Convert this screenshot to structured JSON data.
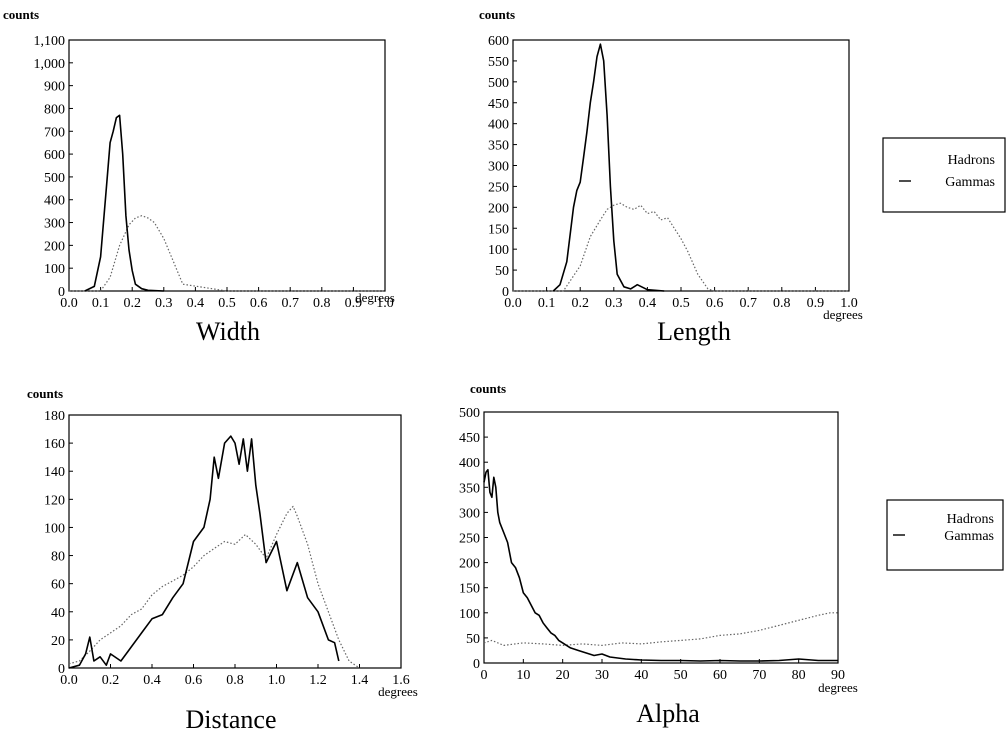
{
  "legend_labels": {
    "hadrons": "Hadrons",
    "gammas": "Gammas"
  },
  "chart_data": [
    {
      "type": "line",
      "title": "Width",
      "ylabel": "counts",
      "xlabel": "degrees",
      "xlim": [
        0,
        1.0
      ],
      "ylim": [
        0,
        1100
      ],
      "xticks": [
        0.0,
        0.1,
        0.2,
        0.3,
        0.4,
        0.5,
        0.6,
        0.7,
        0.8,
        0.9,
        1.0
      ],
      "xtick_labels": [
        "0.0",
        "0.1",
        "0.2",
        "0.3",
        "0.4",
        "0.5",
        "0.6",
        "0.7",
        "0.8",
        "0.9",
        "1.0"
      ],
      "yticks": [
        0,
        100,
        200,
        300,
        400,
        500,
        600,
        700,
        800,
        900,
        1000,
        1100
      ],
      "ytick_labels": [
        "0",
        "100",
        "200",
        "300",
        "400",
        "500",
        "600",
        "700",
        "800",
        "900",
        "1,000",
        "1,100"
      ],
      "series": [
        {
          "name": "Hadrons",
          "style": "dotted",
          "x": [
            0.0,
            0.1,
            0.13,
            0.16,
            0.19,
            0.21,
            0.23,
            0.25,
            0.27,
            0.3,
            0.33,
            0.36,
            0.5,
            0.7,
            0.9,
            1.0
          ],
          "y": [
            0,
            0,
            60,
            200,
            290,
            320,
            330,
            320,
            300,
            230,
            130,
            30,
            0,
            0,
            0,
            0
          ]
        },
        {
          "name": "Gammas",
          "style": "solid",
          "x": [
            0.05,
            0.08,
            0.1,
            0.12,
            0.13,
            0.14,
            0.15,
            0.16,
            0.17,
            0.18,
            0.19,
            0.2,
            0.21,
            0.23,
            0.25,
            0.3
          ],
          "y": [
            0,
            20,
            150,
            480,
            650,
            700,
            760,
            770,
            600,
            330,
            180,
            90,
            30,
            10,
            3,
            0
          ]
        }
      ]
    },
    {
      "type": "line",
      "title": "Length",
      "ylabel": "counts",
      "xlabel": "degrees",
      "xlim": [
        0,
        1.0
      ],
      "ylim": [
        0,
        600
      ],
      "xticks": [
        0.0,
        0.1,
        0.2,
        0.3,
        0.4,
        0.5,
        0.6,
        0.7,
        0.8,
        0.9,
        1.0
      ],
      "xtick_labels": [
        "0.0",
        "0.1",
        "0.2",
        "0.3",
        "0.4",
        "0.5",
        "0.6",
        "0.7",
        "0.8",
        "0.9",
        "1.0"
      ],
      "yticks": [
        0,
        50,
        100,
        150,
        200,
        250,
        300,
        350,
        400,
        450,
        500,
        550,
        600
      ],
      "ytick_labels": [
        "0",
        "50",
        "100",
        "150",
        "200",
        "250",
        "300",
        "350",
        "400",
        "450",
        "500",
        "550",
        "600"
      ],
      "series": [
        {
          "name": "Hadrons",
          "style": "dotted",
          "x": [
            0.0,
            0.15,
            0.2,
            0.23,
            0.26,
            0.28,
            0.3,
            0.32,
            0.34,
            0.36,
            0.38,
            0.4,
            0.42,
            0.44,
            0.46,
            0.48,
            0.5,
            0.52,
            0.55,
            0.58,
            0.6,
            0.7,
            0.8,
            0.9,
            1.0
          ],
          "y": [
            0,
            0,
            60,
            130,
            170,
            195,
            205,
            210,
            200,
            195,
            205,
            185,
            190,
            170,
            175,
            150,
            125,
            95,
            40,
            5,
            0,
            0,
            0,
            0,
            0
          ]
        },
        {
          "name": "Gammas",
          "style": "solid",
          "x": [
            0.12,
            0.14,
            0.16,
            0.18,
            0.19,
            0.2,
            0.21,
            0.22,
            0.23,
            0.24,
            0.25,
            0.26,
            0.27,
            0.28,
            0.29,
            0.3,
            0.31,
            0.33,
            0.35,
            0.37,
            0.4,
            0.45
          ],
          "y": [
            0,
            15,
            70,
            200,
            240,
            260,
            320,
            380,
            450,
            500,
            560,
            590,
            550,
            420,
            250,
            120,
            40,
            10,
            5,
            15,
            3,
            0
          ]
        }
      ]
    },
    {
      "type": "line",
      "title": "Distance",
      "ylabel": "counts",
      "xlabel": "degrees",
      "xlim": [
        0,
        1.6
      ],
      "ylim": [
        0,
        180
      ],
      "xticks": [
        0.0,
        0.2,
        0.4,
        0.6,
        0.8,
        1.0,
        1.2,
        1.4,
        1.6
      ],
      "xtick_labels": [
        "0.0",
        "0.2",
        "0.4",
        "0.6",
        "0.8",
        "1.0",
        "1.2",
        "1.4",
        "1.6"
      ],
      "yticks": [
        0,
        20,
        40,
        60,
        80,
        100,
        120,
        140,
        160,
        180
      ],
      "ytick_labels": [
        "0",
        "20",
        "40",
        "60",
        "80",
        "100",
        "120",
        "140",
        "160",
        "180"
      ],
      "series": [
        {
          "name": "Hadrons",
          "style": "dotted",
          "x": [
            0.0,
            0.05,
            0.1,
            0.15,
            0.2,
            0.25,
            0.3,
            0.35,
            0.4,
            0.45,
            0.5,
            0.55,
            0.6,
            0.65,
            0.7,
            0.75,
            0.8,
            0.85,
            0.9,
            0.95,
            1.0,
            1.05,
            1.08,
            1.1,
            1.15,
            1.2,
            1.25,
            1.3,
            1.35,
            1.4
          ],
          "y": [
            3,
            5,
            12,
            20,
            25,
            30,
            38,
            42,
            52,
            58,
            62,
            66,
            72,
            80,
            85,
            90,
            88,
            95,
            88,
            78,
            95,
            110,
            115,
            108,
            88,
            60,
            40,
            20,
            5,
            0
          ]
        },
        {
          "name": "Gammas",
          "style": "solid",
          "x": [
            0.0,
            0.05,
            0.08,
            0.1,
            0.12,
            0.15,
            0.18,
            0.2,
            0.25,
            0.3,
            0.35,
            0.4,
            0.45,
            0.5,
            0.55,
            0.6,
            0.65,
            0.68,
            0.7,
            0.72,
            0.75,
            0.78,
            0.8,
            0.82,
            0.84,
            0.86,
            0.88,
            0.9,
            0.92,
            0.95,
            1.0,
            1.05,
            1.1,
            1.15,
            1.2,
            1.25,
            1.28,
            1.3
          ],
          "y": [
            0,
            2,
            10,
            22,
            5,
            8,
            2,
            10,
            5,
            15,
            25,
            35,
            38,
            50,
            60,
            90,
            100,
            120,
            150,
            135,
            160,
            165,
            160,
            145,
            163,
            140,
            163,
            130,
            110,
            75,
            90,
            55,
            75,
            50,
            40,
            20,
            18,
            5
          ]
        }
      ]
    },
    {
      "type": "line",
      "title": "Alpha",
      "ylabel": "counts",
      "xlabel": "degrees",
      "xlim": [
        0,
        90
      ],
      "ylim": [
        0,
        500
      ],
      "xticks": [
        0,
        10,
        20,
        30,
        40,
        50,
        60,
        70,
        80,
        90
      ],
      "xtick_labels": [
        "0",
        "10",
        "20",
        "30",
        "40",
        "50",
        "60",
        "70",
        "80",
        "90"
      ],
      "yticks": [
        0,
        50,
        100,
        150,
        200,
        250,
        300,
        350,
        400,
        450,
        500
      ],
      "ytick_labels": [
        "0",
        "50",
        "100",
        "150",
        "200",
        "250",
        "300",
        "350",
        "400",
        "450",
        "500"
      ],
      "series": [
        {
          "name": "Hadrons",
          "style": "dotted",
          "x": [
            0,
            2,
            5,
            10,
            15,
            20,
            25,
            30,
            35,
            40,
            45,
            50,
            55,
            60,
            65,
            70,
            75,
            80,
            85,
            88,
            90
          ],
          "y": [
            40,
            45,
            35,
            40,
            38,
            35,
            38,
            35,
            40,
            38,
            42,
            45,
            48,
            55,
            58,
            65,
            75,
            85,
            95,
            100,
            100
          ]
        },
        {
          "name": "Gammas",
          "style": "solid",
          "x": [
            0,
            0.5,
            1,
            1.5,
            2,
            2.5,
            3,
            3.5,
            4,
            5,
            6,
            7,
            8,
            9,
            10,
            11,
            12,
            13,
            14,
            15,
            16,
            17,
            18,
            19,
            20,
            22,
            24,
            26,
            28,
            30,
            32,
            34,
            36,
            38,
            40,
            45,
            50,
            55,
            60,
            65,
            70,
            75,
            80,
            85,
            90
          ],
          "y": [
            360,
            380,
            385,
            340,
            330,
            370,
            350,
            300,
            280,
            260,
            240,
            200,
            190,
            170,
            140,
            130,
            115,
            100,
            95,
            80,
            70,
            60,
            55,
            45,
            40,
            30,
            25,
            20,
            15,
            18,
            12,
            10,
            8,
            7,
            6,
            5,
            5,
            4,
            5,
            4,
            4,
            5,
            8,
            5,
            5
          ]
        }
      ]
    }
  ]
}
